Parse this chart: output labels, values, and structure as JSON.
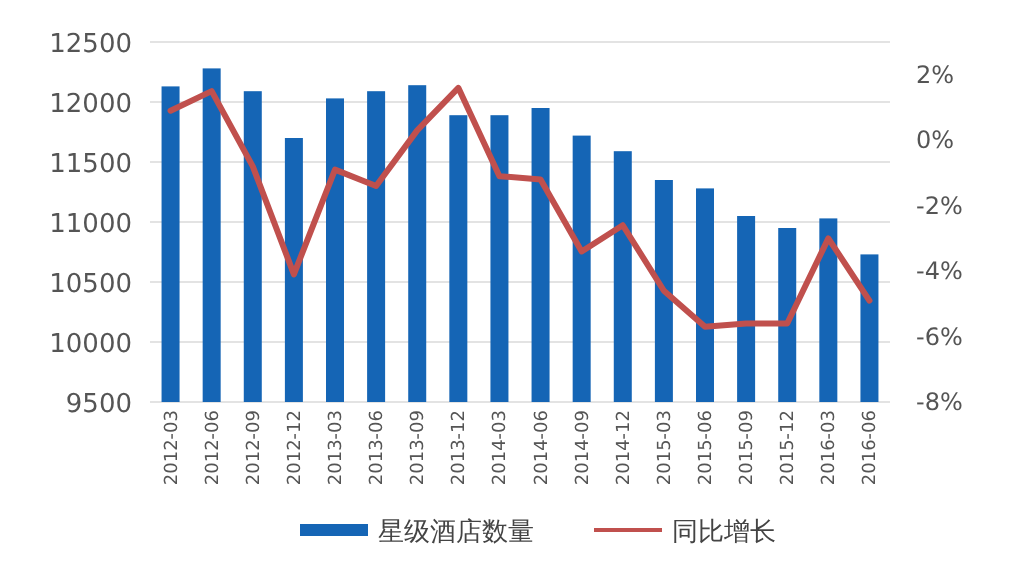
{
  "chart_data": {
    "type": "bar",
    "categories": [
      "2012-03",
      "2012-06",
      "2012-09",
      "2012-12",
      "2013-03",
      "2013-06",
      "2013-09",
      "2013-12",
      "2014-03",
      "2014-06",
      "2014-09",
      "2014-12",
      "2015-03",
      "2015-06",
      "2015-09",
      "2015-12",
      "2016-03",
      "2016-06"
    ],
    "series": [
      {
        "name": "星级酒店数量",
        "color": "#1565b5",
        "values": [
          12130,
          12280,
          12090,
          11700,
          12030,
          12090,
          12140,
          11890,
          11890,
          11950,
          11720,
          11590,
          11350,
          11280,
          11050,
          10950,
          11030,
          10730
        ]
      },
      {
        "name": "同比增长",
        "type": "line",
        "axis": "y2",
        "color": "#c0504d",
        "values": [
          0.9,
          1.5,
          -0.8,
          -4.1,
          -0.9,
          -1.4,
          0.3,
          1.6,
          -1.1,
          -1.2,
          -3.4,
          -2.6,
          -4.6,
          -5.7,
          -5.6,
          -5.6,
          -3.0,
          -4.9
        ]
      }
    ],
    "ylim": [
      9500,
      12500
    ],
    "yticks": [
      9500,
      10000,
      10500,
      11000,
      11500,
      12000,
      12500
    ],
    "y2lim": [
      -8,
      3
    ],
    "y2ticks": [
      {
        "value": -8,
        "label": "-8%"
      },
      {
        "value": -6,
        "label": "-6%"
      },
      {
        "value": -4,
        "label": "-4%"
      },
      {
        "value": -2,
        "label": "-2%"
      },
      {
        "value": 0,
        "label": "0%"
      },
      {
        "value": 2,
        "label": "2%"
      }
    ],
    "grid": "y",
    "legend": "bottom"
  }
}
